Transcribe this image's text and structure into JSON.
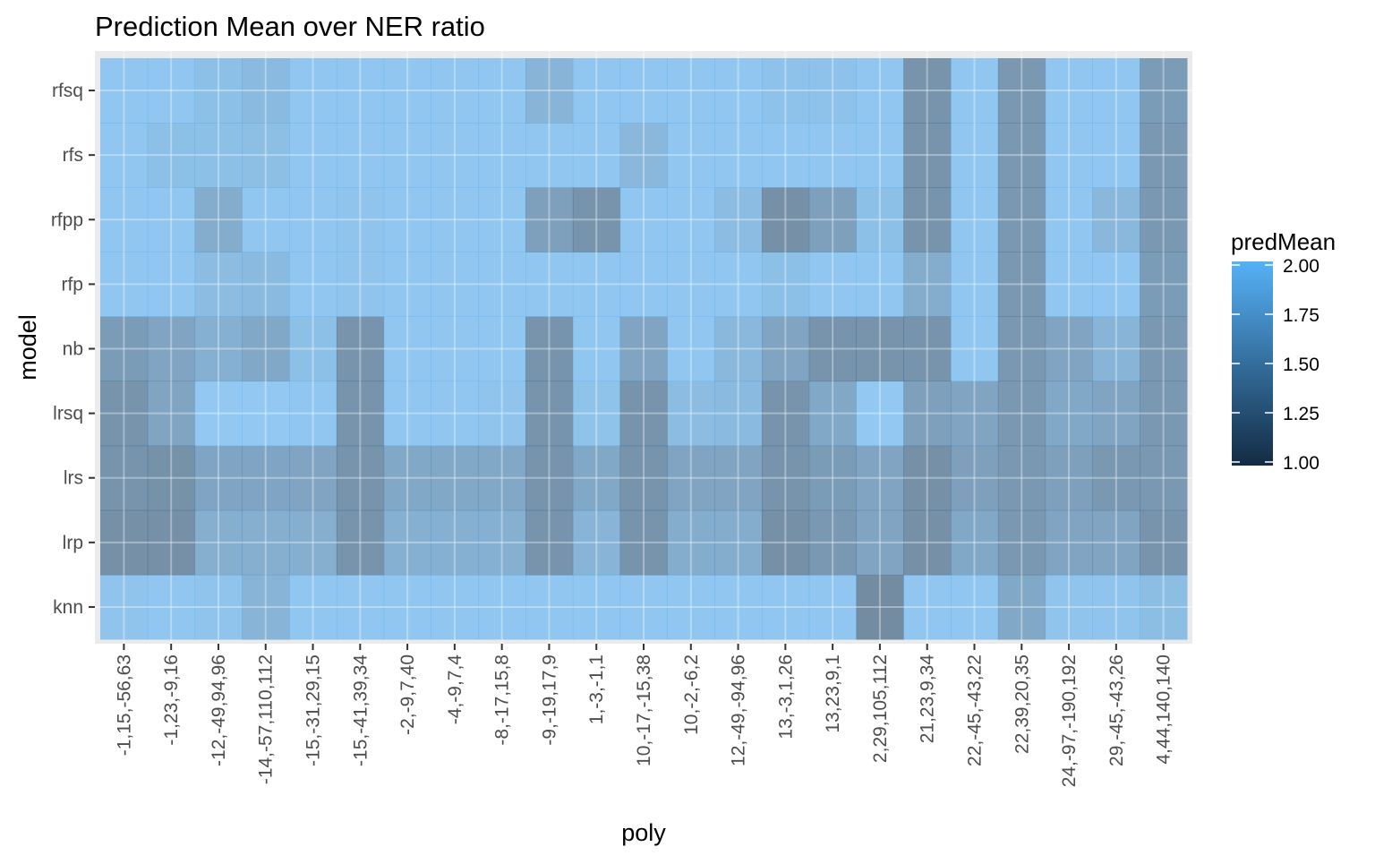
{
  "chart_data": {
    "type": "heatmap",
    "title": "Prediction Mean over NER ratio",
    "xlabel": "poly",
    "ylabel": "model",
    "x": [
      "-1,15,-56,63",
      "-1,23,-9,16",
      "-12,-49,94,96",
      "-14,-57,110,112",
      "-15,-31,29,15",
      "-15,-41,39,34",
      "-2,-9,7,40",
      "-4,-9,7,4",
      "-8,-17,15,8",
      "-9,-19,17,9",
      "1,-3,-1,1",
      "10,-17,-15,38",
      "10,-2,-6,2",
      "12,-49,-94,96",
      "13,-3,1,26",
      "13,23,9,1",
      "2,29,105,112",
      "21,23,9,34",
      "22,-45,-43,22",
      "22,39,20,35",
      "24,-97,-190,192",
      "29,-45,-43,26",
      "4,44,140,140"
    ],
    "y": [
      "knn",
      "lrp",
      "lrs",
      "lrsq",
      "nb",
      "rfp",
      "rfpp",
      "rfs",
      "rfsq"
    ],
    "values": [
      [
        1.95,
        1.97,
        1.95,
        1.75,
        1.97,
        1.97,
        1.97,
        1.97,
        1.97,
        1.97,
        1.97,
        1.97,
        1.97,
        1.97,
        1.97,
        1.97,
        1.25,
        1.97,
        1.97,
        1.6,
        1.95,
        1.95,
        1.87
      ],
      [
        1.3,
        1.3,
        1.68,
        1.68,
        1.68,
        1.35,
        1.7,
        1.7,
        1.7,
        1.35,
        1.75,
        1.35,
        1.65,
        1.65,
        1.3,
        1.4,
        1.55,
        1.3,
        1.6,
        1.4,
        1.55,
        1.55,
        1.35
      ],
      [
        1.35,
        1.32,
        1.57,
        1.57,
        1.55,
        1.35,
        1.6,
        1.6,
        1.6,
        1.35,
        1.6,
        1.35,
        1.55,
        1.55,
        1.35,
        1.45,
        1.55,
        1.3,
        1.5,
        1.4,
        1.5,
        1.4,
        1.4
      ],
      [
        1.35,
        1.55,
        2.0,
        2.0,
        1.97,
        1.35,
        1.97,
        1.97,
        1.95,
        1.35,
        1.93,
        1.35,
        1.85,
        1.82,
        1.35,
        1.6,
        2.0,
        1.5,
        1.55,
        1.4,
        1.6,
        1.55,
        1.4
      ],
      [
        1.45,
        1.55,
        1.7,
        1.6,
        1.9,
        1.35,
        1.97,
        1.97,
        1.97,
        1.35,
        1.97,
        1.55,
        1.97,
        1.8,
        1.55,
        1.35,
        1.35,
        1.35,
        1.97,
        1.4,
        1.55,
        1.75,
        1.4
      ],
      [
        1.97,
        1.97,
        1.85,
        1.82,
        1.97,
        1.95,
        1.97,
        1.97,
        1.97,
        1.97,
        1.97,
        1.97,
        1.97,
        1.97,
        1.9,
        1.97,
        1.97,
        1.65,
        1.97,
        1.4,
        1.97,
        1.97,
        1.45
      ],
      [
        1.97,
        1.97,
        1.65,
        1.97,
        1.97,
        1.95,
        1.97,
        1.97,
        1.97,
        1.5,
        1.35,
        1.97,
        1.97,
        1.85,
        1.3,
        1.5,
        1.9,
        1.35,
        1.97,
        1.4,
        1.97,
        1.8,
        1.4
      ],
      [
        1.97,
        1.9,
        1.9,
        1.88,
        1.97,
        1.97,
        1.97,
        1.97,
        1.97,
        1.97,
        1.97,
        1.8,
        1.97,
        1.97,
        1.97,
        1.97,
        1.97,
        1.35,
        1.97,
        1.4,
        1.97,
        1.97,
        1.4
      ],
      [
        1.97,
        1.97,
        1.9,
        1.82,
        1.97,
        1.97,
        1.97,
        1.97,
        1.97,
        1.75,
        1.97,
        1.97,
        1.97,
        1.97,
        1.92,
        1.92,
        1.97,
        1.35,
        1.97,
        1.4,
        1.97,
        1.97,
        1.45
      ]
    ],
    "legend": {
      "title": "predMean",
      "placement": "right",
      "ticks": [
        "1.00",
        "1.25",
        "1.50",
        "1.75",
        "2.00"
      ],
      "range": [
        1.0,
        2.0
      ],
      "color_low": "#132B43",
      "color_high": "#56B1F7"
    },
    "panel_background": "#EBEBEB",
    "grid": true
  }
}
